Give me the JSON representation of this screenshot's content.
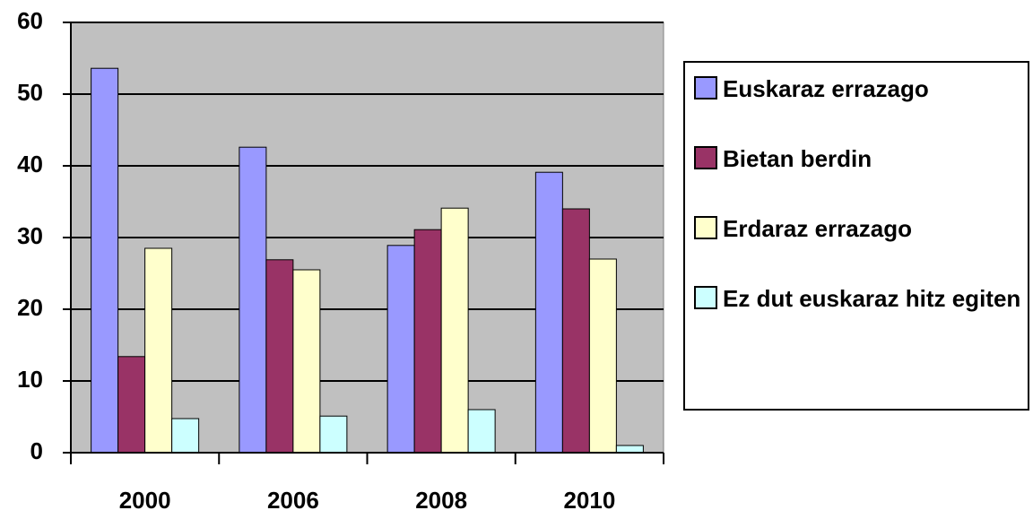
{
  "chart_data": {
    "type": "bar",
    "categories": [
      "2000",
      "2006",
      "2008",
      "2010"
    ],
    "series": [
      {
        "name": "Euskaraz errazago",
        "color": "#9999ff",
        "values": [
          53.6,
          42.6,
          28.9,
          39.1
        ]
      },
      {
        "name": "Bietan berdin",
        "color": "#993366",
        "values": [
          13.4,
          26.9,
          31.1,
          34
        ]
      },
      {
        "name": "Erdaraz errazago",
        "color": "#ffffcc",
        "values": [
          28.5,
          25.5,
          34.1,
          27
        ]
      },
      {
        "name": "Ez dut euskaraz hitz egiten",
        "color": "#ccffff",
        "values": [
          4.75,
          5.1,
          6,
          1
        ]
      }
    ],
    "ylim": [
      0,
      60
    ],
    "yticks": [
      0,
      10,
      20,
      30,
      40,
      50,
      60
    ],
    "grid": true,
    "plot_background": "#c0c0c0",
    "legend": "right"
  }
}
